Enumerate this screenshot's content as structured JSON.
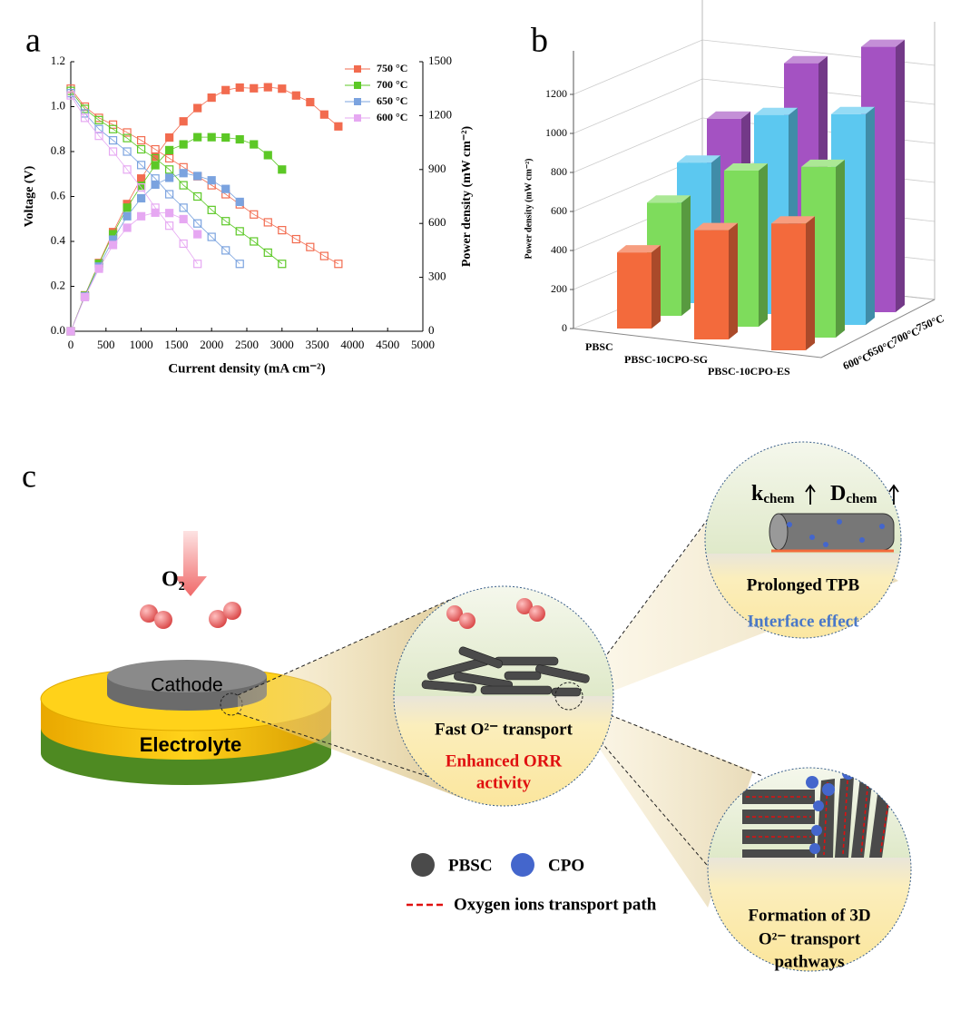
{
  "chart_data": [
    {
      "type": "line",
      "panel_label": "a",
      "xlabel": "Current density (mA cm⁻²)",
      "ylabel": "Voltage (V)",
      "y2label": "Power density (mW cm⁻²)",
      "xlim": [
        0,
        5000
      ],
      "xticks": [
        0,
        500,
        1000,
        1500,
        2000,
        2500,
        3000,
        3500,
        4000,
        4500,
        5000
      ],
      "ylim": [
        0,
        1.2
      ],
      "yticks": [
        {
          "value": 0,
          "label": "0.0"
        },
        0.2,
        0.4,
        0.6,
        0.8,
        {
          "value": 1,
          "label": "1.0"
        },
        1.2
      ],
      "y2lim": [
        0,
        1500
      ],
      "y2ticks": [
        0,
        300,
        600,
        900,
        1200,
        1500
      ],
      "legend": "upper right",
      "series": [
        {
          "name": "750 °C",
          "color": "#f26b4f",
          "x": [
            0,
            200,
            400,
            600,
            800,
            1000,
            1200,
            1400,
            1600,
            1800,
            2000,
            2200,
            2400,
            2600,
            2800,
            3000,
            3200,
            3400,
            3600,
            3800
          ],
          "voltage": [
            1.08,
            1.0,
            0.95,
            0.92,
            0.885,
            0.85,
            0.81,
            0.77,
            0.73,
            0.69,
            0.65,
            0.61,
            0.565,
            0.52,
            0.485,
            0.45,
            0.41,
            0.375,
            0.335,
            0.3
          ],
          "power": [
            0,
            200,
            380,
            552,
            708,
            850,
            972,
            1078,
            1168,
            1242,
            1300,
            1342,
            1356,
            1352,
            1358,
            1350,
            1312,
            1275,
            1206,
            1140
          ]
        },
        {
          "name": "700 °C",
          "color": "#5cc826",
          "x": [
            0,
            200,
            400,
            600,
            800,
            1000,
            1200,
            1400,
            1600,
            1800,
            2000,
            2200,
            2400,
            2600,
            2800,
            3000
          ],
          "voltage": [
            1.07,
            0.99,
            0.94,
            0.9,
            0.86,
            0.81,
            0.77,
            0.72,
            0.65,
            0.6,
            0.54,
            0.49,
            0.445,
            0.4,
            0.35,
            0.3
          ],
          "power": [
            0,
            198,
            376,
            540,
            688,
            810,
            924,
            1008,
            1040,
            1080,
            1080,
            1078,
            1068,
            1040,
            980,
            900
          ]
        },
        {
          "name": "650 °C",
          "color": "#7ba3df",
          "x": [
            0,
            200,
            400,
            600,
            800,
            1000,
            1200,
            1400,
            1600,
            1800,
            2000,
            2200,
            2400
          ],
          "voltage": [
            1.06,
            0.97,
            0.9,
            0.85,
            0.8,
            0.74,
            0.68,
            0.61,
            0.55,
            0.48,
            0.42,
            0.36,
            0.3
          ],
          "power": [
            0,
            194,
            360,
            510,
            640,
            740,
            816,
            854,
            880,
            864,
            840,
            792,
            720
          ]
        },
        {
          "name": "600 °C",
          "color": "#e6a8f2",
          "x": [
            0,
            200,
            400,
            600,
            800,
            1000,
            1200,
            1400,
            1600,
            1800
          ],
          "voltage": [
            1.05,
            0.95,
            0.87,
            0.8,
            0.72,
            0.64,
            0.55,
            0.47,
            0.39,
            0.3
          ],
          "power": [
            0,
            190,
            348,
            480,
            576,
            640,
            660,
            658,
            624,
            540
          ]
        }
      ]
    },
    {
      "type": "bar3d",
      "panel_label": "b",
      "ylabel": "Power density (mW cm⁻²)",
      "categories": [
        "PBSC",
        "PBSC-10CPO-SG",
        "PBSC-10CPO-ES"
      ],
      "ylim": [
        0,
        1400
      ],
      "yticks": [
        0,
        200,
        400,
        600,
        800,
        1000,
        1200
      ],
      "series": [
        {
          "name": "600°C",
          "color": "#f36a3c",
          "values": [
            390,
            560,
            650
          ]
        },
        {
          "name": "650°C",
          "color": "#7edc5c",
          "values": [
            580,
            800,
            875
          ]
        },
        {
          "name": "700°C",
          "color": "#5cc8f0",
          "values": [
            720,
            1020,
            1080
          ]
        },
        {
          "name": "750°C",
          "color": "#a452c2",
          "values": [
            880,
            1220,
            1360
          ]
        }
      ]
    }
  ],
  "diagram": {
    "panel_label": "c",
    "o2": "O₂",
    "cathode": "Cathode",
    "electrolyte": "Electrolyte",
    "bulk_zoom": {
      "line1": "Fast O²⁻ transport",
      "line2": "Enhanced ORR",
      "line3": "activity"
    },
    "interface_zoom": {
      "k": "k",
      "k_sub": "chem",
      "d": "D",
      "d_sub": "chem",
      "line1": "Prolonged TPB",
      "line2": "Interface effect"
    },
    "pathway_zoom": {
      "line1": "Formation of 3D",
      "line2": "O²⁻ transport",
      "line3": "pathways"
    },
    "legend": {
      "pbsc": "PBSC",
      "cpo": "CPO",
      "path": "Oxygen ions transport path"
    }
  }
}
